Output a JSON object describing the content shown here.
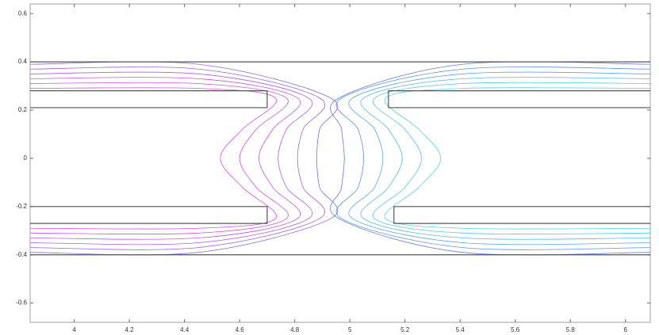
{
  "chart_data": {
    "type": "contour",
    "xlim": [
      3.84,
      6.09
    ],
    "ylim": [
      -0.68,
      0.64
    ],
    "xticks": [
      4,
      4.2,
      4.4,
      4.6,
      4.8,
      5,
      5.2,
      5.4,
      5.6,
      5.8,
      6
    ],
    "yticks": [
      -0.6,
      -0.4,
      -0.2,
      0,
      0.2,
      0.4,
      0.6
    ],
    "outline_color": "#555555",
    "outlines": [
      {
        "x": [
          3.84,
          6.09
        ],
        "y": [
          0.4,
          0.4
        ]
      },
      {
        "x": [
          3.84,
          6.09
        ],
        "y": [
          -0.4,
          -0.4
        ]
      },
      {
        "x": [
          3.84,
          4.7,
          4.7,
          3.84
        ],
        "y": [
          0.28,
          0.28,
          0.21,
          0.21
        ]
      },
      {
        "x": [
          6.09,
          5.14,
          5.14,
          6.09
        ],
        "y": [
          0.28,
          0.28,
          0.21,
          0.21
        ]
      },
      {
        "x": [
          3.84,
          4.7,
          4.7,
          3.84
        ],
        "y": [
          -0.2,
          -0.2,
          -0.27,
          -0.27
        ]
      },
      {
        "x": [
          6.09,
          5.16,
          5.16,
          6.09
        ],
        "y": [
          -0.2,
          -0.2,
          -0.27,
          -0.27
        ]
      }
    ],
    "series": [
      {
        "color": "#d94fe0",
        "x": [
          3.84,
          4.45,
          4.73,
          4.61,
          4.53,
          4.61,
          4.73,
          4.45,
          3.84
        ],
        "y": [
          0.29,
          0.29,
          0.25,
          0.12,
          0,
          -0.12,
          -0.25,
          -0.29,
          -0.29
        ]
      },
      {
        "color": "#cf52de",
        "x": [
          3.84,
          4.45,
          4.77,
          4.66,
          4.6,
          4.66,
          4.77,
          4.45,
          3.84
        ],
        "y": [
          0.31,
          0.31,
          0.25,
          0.12,
          0,
          -0.12,
          -0.25,
          -0.31,
          -0.31
        ]
      },
      {
        "color": "#c256dc",
        "x": [
          3.84,
          4.45,
          4.81,
          4.72,
          4.67,
          4.72,
          4.81,
          4.45,
          3.84
        ],
        "y": [
          0.33,
          0.33,
          0.25,
          0.12,
          0,
          -0.12,
          -0.25,
          -0.33,
          -0.33
        ]
      },
      {
        "color": "#b25bda",
        "x": [
          3.84,
          4.45,
          4.85,
          4.77,
          4.74,
          4.77,
          4.85,
          4.45,
          3.84
        ],
        "y": [
          0.35,
          0.35,
          0.25,
          0.12,
          0,
          -0.12,
          -0.25,
          -0.35,
          -0.35
        ]
      },
      {
        "color": "#a060d8",
        "x": [
          3.84,
          4.45,
          4.89,
          4.83,
          4.81,
          4.83,
          4.89,
          4.45,
          3.84
        ],
        "y": [
          0.37,
          0.37,
          0.25,
          0.12,
          0,
          -0.12,
          -0.25,
          -0.37,
          -0.37
        ]
      },
      {
        "color": "#8c66d6",
        "x": [
          3.84,
          4.45,
          4.93,
          4.89,
          4.88,
          4.89,
          4.93,
          4.45,
          3.84
        ],
        "y": [
          0.39,
          0.39,
          0.25,
          0.12,
          0,
          -0.12,
          -0.25,
          -0.39,
          -0.39
        ]
      },
      {
        "color": "#4fd3e6",
        "x": [
          6.09,
          5.41,
          5.13,
          5.25,
          5.33,
          5.25,
          5.13,
          5.41,
          6.09
        ],
        "y": [
          0.29,
          0.29,
          0.25,
          0.12,
          0,
          -0.12,
          -0.25,
          -0.29,
          -0.29
        ]
      },
      {
        "color": "#52c6e4",
        "x": [
          6.09,
          5.41,
          5.09,
          5.2,
          5.26,
          5.2,
          5.09,
          5.41,
          6.09
        ],
        "y": [
          0.31,
          0.31,
          0.25,
          0.12,
          0,
          -0.12,
          -0.25,
          -0.31,
          -0.31
        ]
      },
      {
        "color": "#56b6e2",
        "x": [
          6.09,
          5.41,
          5.05,
          5.14,
          5.19,
          5.14,
          5.05,
          5.41,
          6.09
        ],
        "y": [
          0.33,
          0.33,
          0.25,
          0.12,
          0,
          -0.12,
          -0.25,
          -0.33,
          -0.33
        ]
      },
      {
        "color": "#5ba4e0",
        "x": [
          6.09,
          5.41,
          5.01,
          5.09,
          5.12,
          5.09,
          5.01,
          5.41,
          6.09
        ],
        "y": [
          0.35,
          0.35,
          0.25,
          0.12,
          0,
          -0.12,
          -0.25,
          -0.35,
          -0.35
        ]
      },
      {
        "color": "#6090de",
        "x": [
          6.09,
          5.41,
          4.97,
          5.03,
          5.05,
          5.03,
          4.97,
          5.41,
          6.09
        ],
        "y": [
          0.37,
          0.37,
          0.25,
          0.12,
          0,
          -0.12,
          -0.25,
          -0.37,
          -0.37
        ]
      },
      {
        "color": "#667cda",
        "x": [
          6.09,
          5.41,
          4.96,
          4.97,
          4.98,
          4.97,
          4.96,
          5.41,
          6.09
        ],
        "y": [
          0.39,
          0.39,
          0.25,
          0.12,
          0,
          -0.12,
          -0.25,
          -0.39,
          -0.39
        ]
      }
    ]
  }
}
